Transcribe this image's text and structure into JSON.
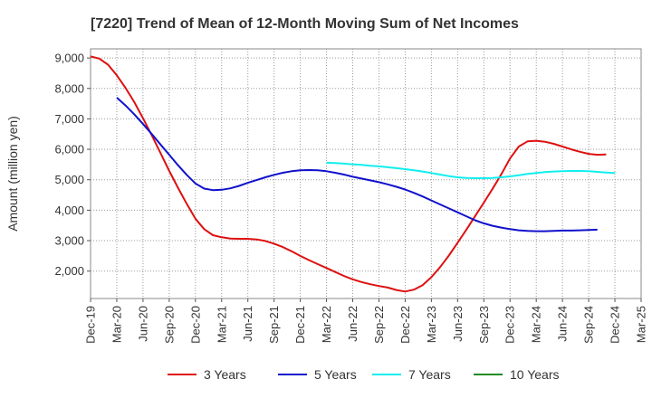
{
  "chart_data": {
    "type": "line",
    "title": "[7220]  Trend of Mean of 12-Month Moving Sum of Net Incomes",
    "xlabel": "",
    "ylabel": "Amount (million yen)",
    "ylim": [
      1100,
      9300
    ],
    "y_ticks": [
      2000,
      3000,
      4000,
      5000,
      6000,
      7000,
      8000,
      9000
    ],
    "y_tick_labels": [
      "2,000",
      "3,000",
      "4,000",
      "5,000",
      "6,000",
      "7,000",
      "8,000",
      "9,000"
    ],
    "x_ticks": [
      "Dec-19",
      "Mar-20",
      "Jun-20",
      "Sep-20",
      "Dec-20",
      "Mar-21",
      "Jun-21",
      "Sep-21",
      "Dec-21",
      "Mar-22",
      "Jun-22",
      "Sep-22",
      "Dec-22",
      "Mar-23",
      "Jun-23",
      "Sep-23",
      "Dec-23",
      "Mar-24",
      "Jun-24",
      "Sep-24",
      "Dec-24",
      "Mar-25"
    ],
    "grid": true,
    "legend_position": "bottom",
    "series": [
      {
        "name": "3 Years",
        "color": "#dd1111",
        "start_index": 0,
        "values": [
          9050,
          8980,
          8780,
          8430,
          8020,
          7550,
          7020,
          6460,
          5880,
          5290,
          4740,
          4210,
          3720,
          3380,
          3180,
          3110,
          3070,
          3060,
          3060,
          3040,
          2990,
          2900,
          2790,
          2650,
          2500,
          2360,
          2230,
          2100,
          1970,
          1840,
          1730,
          1640,
          1570,
          1510,
          1460,
          1380,
          1330,
          1390,
          1540,
          1800,
          2130,
          2510,
          2930,
          3360,
          3800,
          4250,
          4700,
          5180,
          5700,
          6090,
          6260,
          6280,
          6250,
          6180,
          6090,
          6000,
          5920,
          5850,
          5820,
          5830
        ]
      },
      {
        "name": "5 Years",
        "color": "#1111cc",
        "start_index": 3,
        "values": [
          7700,
          7440,
          7150,
          6830,
          6500,
          6160,
          5820,
          5480,
          5160,
          4880,
          4710,
          4660,
          4670,
          4720,
          4800,
          4900,
          4990,
          5080,
          5160,
          5230,
          5280,
          5310,
          5320,
          5310,
          5280,
          5230,
          5170,
          5100,
          5040,
          4980,
          4920,
          4850,
          4770,
          4680,
          4570,
          4450,
          4320,
          4190,
          4060,
          3930,
          3800,
          3670,
          3570,
          3490,
          3430,
          3380,
          3340,
          3320,
          3310,
          3310,
          3320,
          3330,
          3330,
          3340,
          3350,
          3360
        ]
      },
      {
        "name": "7 Years",
        "color": "#11eeee",
        "start_index": 27,
        "values": [
          5560,
          5550,
          5530,
          5510,
          5490,
          5460,
          5440,
          5410,
          5380,
          5350,
          5310,
          5270,
          5220,
          5170,
          5120,
          5080,
          5060,
          5050,
          5050,
          5060,
          5080,
          5110,
          5150,
          5190,
          5220,
          5250,
          5270,
          5280,
          5290,
          5290,
          5280,
          5260,
          5240,
          5220
        ]
      },
      {
        "name": "10 Years",
        "color": "#228b22",
        "start_index": 0,
        "values": []
      }
    ]
  }
}
